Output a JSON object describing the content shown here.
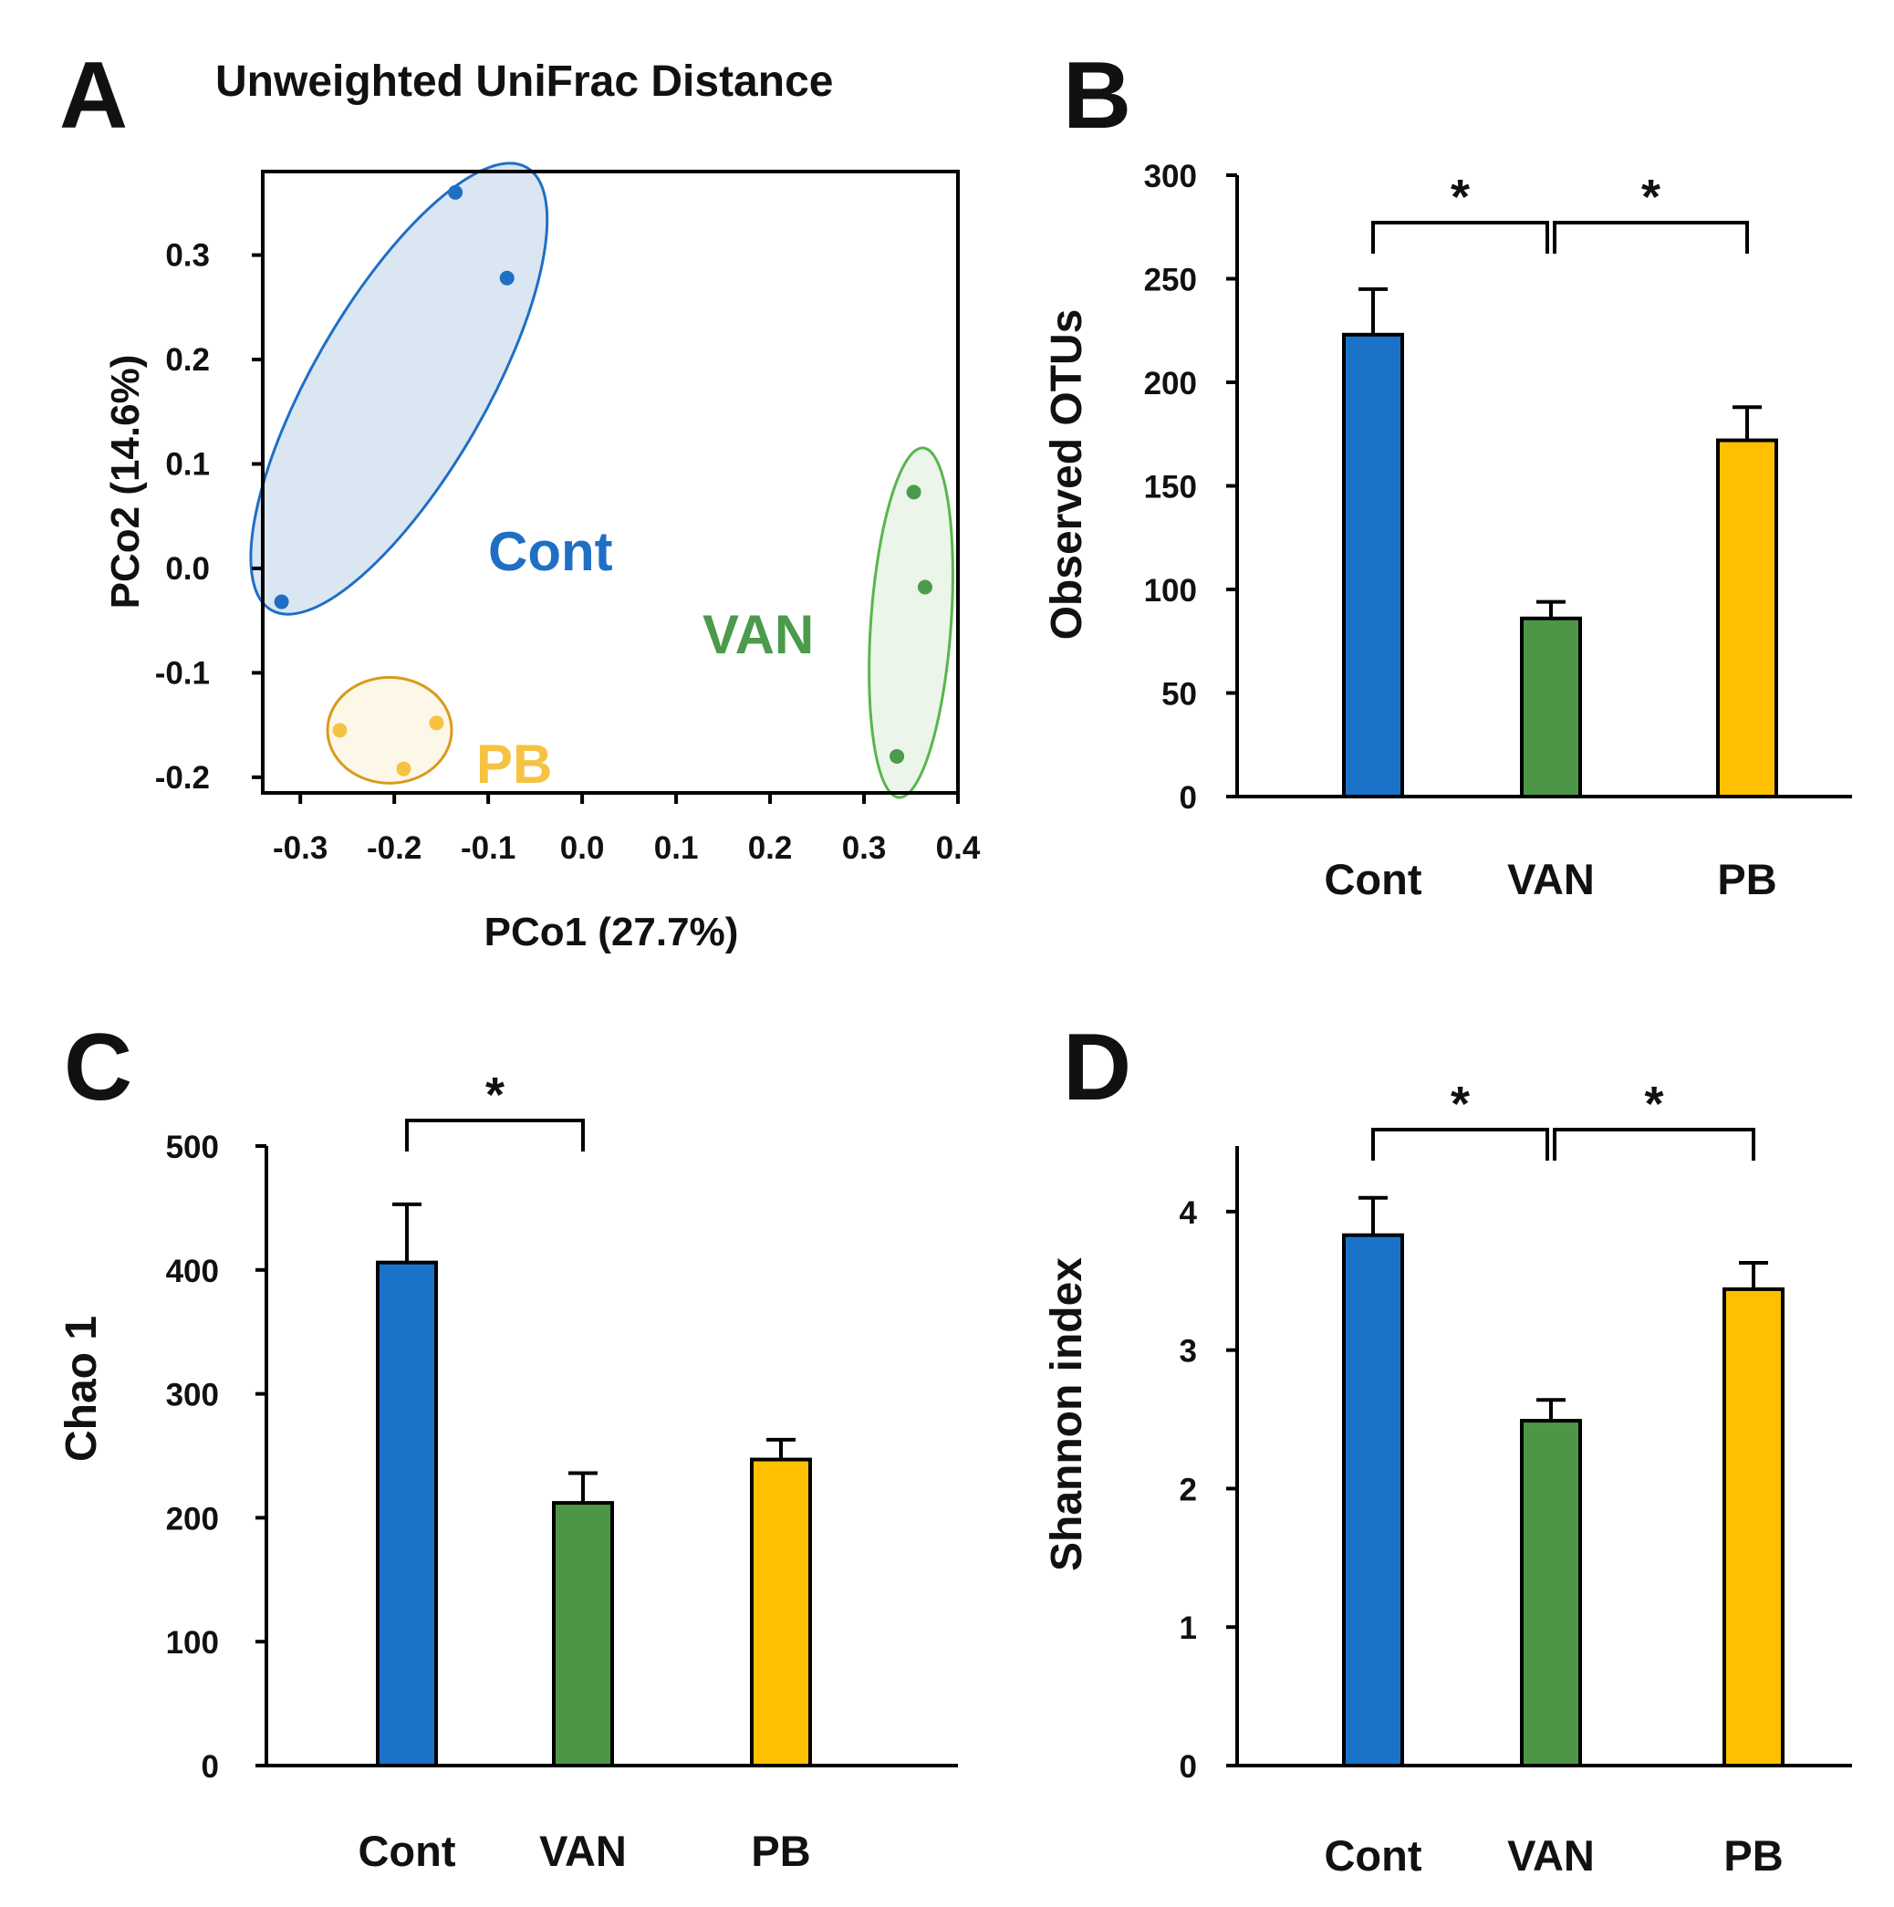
{
  "chart_data": [
    {
      "panel": "A",
      "type": "scatter",
      "title": "Unweighted UniFrac Distance",
      "xlabel": "PCo1 (27.7%)",
      "ylabel": "PCo2 (14.6%)",
      "xlim": [
        -0.34,
        0.4
      ],
      "ylim": [
        -0.215,
        0.38
      ],
      "xticks": [
        "-0.3",
        "-0.2",
        "-0.1",
        "0.0",
        "0.1",
        "0.2",
        "0.3",
        "0.4"
      ],
      "yticks": [
        "-0.2",
        "-0.1",
        "0.0",
        "0.1",
        "0.2",
        "0.3"
      ],
      "series": [
        {
          "name": "Cont",
          "color": "#1f6fc5",
          "fill": "#dbe6f3",
          "points": [
            [
              -0.135,
              0.36
            ],
            [
              -0.08,
              0.278
            ],
            [
              -0.32,
              -0.032
            ]
          ]
        },
        {
          "name": "PB",
          "color": "#f5c242",
          "fill": "#fdf7e8",
          "outline": "#d89a1d",
          "points": [
            [
              -0.258,
              -0.155
            ],
            [
              -0.155,
              -0.148
            ],
            [
              -0.19,
              -0.192
            ]
          ]
        },
        {
          "name": "VAN",
          "color": "#4c9a4c",
          "fill": "#ecf5ea",
          "outline": "#58b64c",
          "points": [
            [
              0.353,
              0.073
            ],
            [
              0.365,
              -0.018
            ],
            [
              0.335,
              -0.18
            ]
          ]
        }
      ]
    },
    {
      "panel": "B",
      "type": "bar",
      "ylabel": "Observed OTUs",
      "ylim": [
        0,
        300
      ],
      "yticks": [
        "0",
        "50",
        "100",
        "150",
        "200",
        "250",
        "300"
      ],
      "categories": [
        "Cont",
        "VAN",
        "PB"
      ],
      "values": [
        223,
        86,
        172
      ],
      "errors": [
        22,
        8,
        16
      ],
      "colors": [
        "#1a73c9",
        "#4e9647",
        "#ffc000"
      ],
      "significance": [
        {
          "from": "Cont",
          "to": "VAN",
          "label": "*"
        },
        {
          "from": "VAN",
          "to": "PB",
          "label": "*"
        }
      ]
    },
    {
      "panel": "C",
      "type": "bar",
      "ylabel": "Chao 1",
      "ylim": [
        0,
        500
      ],
      "yticks": [
        "0",
        "100",
        "200",
        "300",
        "400",
        "500"
      ],
      "categories": [
        "Cont",
        "VAN",
        "PB"
      ],
      "values": [
        406,
        212,
        247
      ],
      "errors": [
        47,
        24,
        16
      ],
      "colors": [
        "#1a73c9",
        "#4e9647",
        "#ffc000"
      ],
      "significance": [
        {
          "from": "Cont",
          "to": "VAN",
          "label": "*"
        }
      ]
    },
    {
      "panel": "D",
      "type": "bar",
      "ylabel": "Shannon index",
      "ylim": [
        0,
        4.5
      ],
      "yticks": [
        "0",
        "1",
        "2",
        "3",
        "4"
      ],
      "categories": [
        "Cont",
        "VAN",
        "PB"
      ],
      "values": [
        3.83,
        2.49,
        3.44
      ],
      "errors": [
        0.27,
        0.15,
        0.19
      ],
      "colors": [
        "#1a73c9",
        "#4e9647",
        "#ffc000"
      ],
      "significance": [
        {
          "from": "Cont",
          "to": "VAN",
          "label": "*"
        },
        {
          "from": "VAN",
          "to": "PB",
          "label": "*"
        }
      ]
    }
  ]
}
